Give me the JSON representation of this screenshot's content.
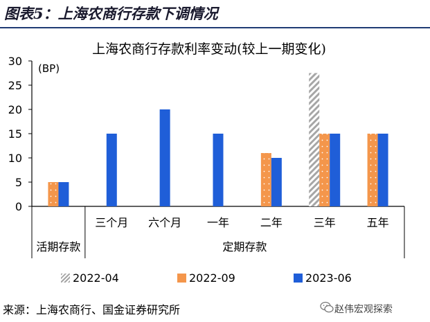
{
  "figure_label": "图表5：上海农商行存款下调情况",
  "source_note": "来源：上海农商行、国金证券研究所",
  "brand": "赵伟宏观探索",
  "brand_icon": "wechat-icon",
  "colors": {
    "s2022_04": "#bfbfbf",
    "s2022_09": "#f4964b",
    "s2023_06": "#1f5ed8",
    "axis": "#000000",
    "title_rule": "#1f3b73"
  },
  "chart_data": {
    "type": "bar",
    "title": "上海农商行存款利率变动(较上一期变化)",
    "ylabel": "(BP)",
    "ylim": [
      0,
      30
    ],
    "yticks": [
      0,
      5,
      10,
      15,
      20,
      25,
      30
    ],
    "categories": [
      "活期存款",
      "三个月",
      "六个月",
      "一年",
      "二年",
      "三年",
      "五年"
    ],
    "groups": [
      {
        "label": "活期存款",
        "span": 1
      },
      {
        "label": "定期存款",
        "span": 6
      }
    ],
    "series": [
      {
        "name": "2022-04",
        "pattern": "hatch",
        "values": [
          null,
          null,
          null,
          null,
          null,
          27.5,
          null
        ]
      },
      {
        "name": "2022-09",
        "pattern": "dotted",
        "values": [
          5,
          null,
          null,
          null,
          11,
          15,
          15
        ]
      },
      {
        "name": "2023-06",
        "pattern": "solid",
        "values": [
          5,
          15,
          20,
          15,
          10,
          15,
          15
        ]
      }
    ],
    "legend_position": "bottom"
  }
}
